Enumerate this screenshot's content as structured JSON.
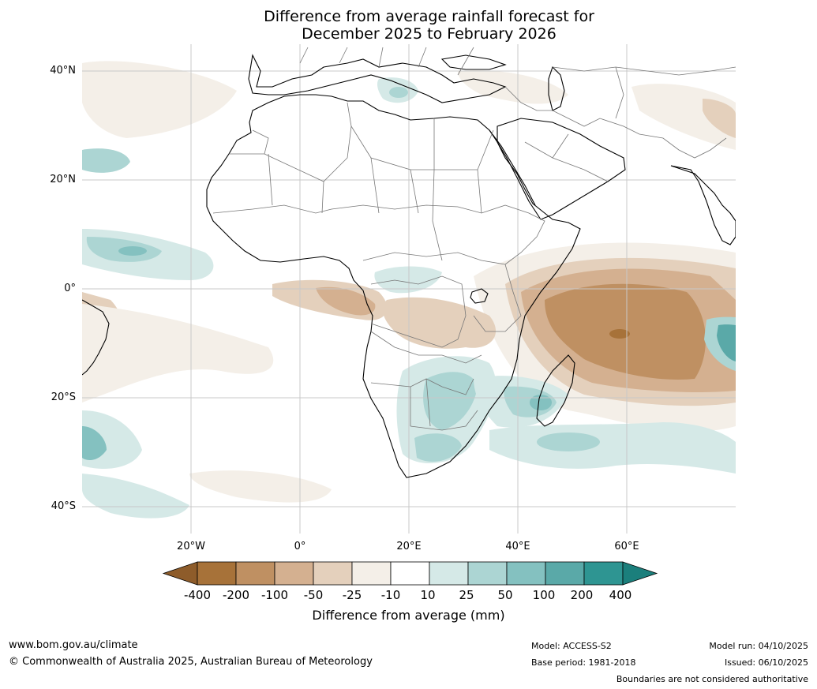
{
  "title": {
    "line1": "Difference from average rainfall forecast for",
    "line2": "December 2025 to February 2026"
  },
  "map": {
    "lat_labels": [
      "40°N",
      "20°N",
      "0°",
      "20°S",
      "40°S"
    ],
    "lon_labels": [
      "20°W",
      "0°",
      "20°E",
      "40°E",
      "60°E"
    ],
    "anomaly_areas": [
      {
        "name": "indian-ocean-dry-anomaly",
        "category": "-100"
      },
      {
        "name": "central-africa-dry-anomaly",
        "category": "-50"
      },
      {
        "name": "gulf-of-guinea-dry-anomaly",
        "category": "-100"
      },
      {
        "name": "southern-africa-wet-anomaly",
        "category": "50"
      },
      {
        "name": "mozambique-channel-wet-anomaly",
        "category": "100"
      },
      {
        "name": "east-indian-ocean-wet-anomaly",
        "category": "200"
      },
      {
        "name": "tropical-atlantic-wet-anomaly",
        "category": "100"
      },
      {
        "name": "south-atlantic-wet-anomaly",
        "category": "100"
      },
      {
        "name": "mediterranean-wet-anomaly",
        "category": "25"
      },
      {
        "name": "north-atlantic-dry-anomaly",
        "category": "-25"
      },
      {
        "name": "south-america-dry-anomaly",
        "category": "-50"
      }
    ]
  },
  "colorbar": {
    "labels": [
      "-400",
      "-200",
      "-100",
      "-50",
      "-25",
      "-10",
      "10",
      "25",
      "50",
      "100",
      "200",
      "400"
    ],
    "colors": [
      "#a77239",
      "#bf9062",
      "#d4b090",
      "#e4d0bc",
      "#f4efe8",
      "#ffffff",
      "#d5e9e7",
      "#acd5d3",
      "#84c1c0",
      "#5aa9a8",
      "#2e9592"
    ],
    "low_end_color": "#8e5c2a",
    "high_end_color": "#1b7f7c",
    "title": "Difference from average (mm)"
  },
  "footer": {
    "website": "www.bom.gov.au/climate",
    "copyright": "© Commonwealth of Australia 2025, Australian Bureau of Meteorology",
    "model": "Model: ACCESS-S2",
    "base_period": "Base period: 1981-2018",
    "model_run": "Model run: 04/10/2025",
    "issued": "Issued: 06/10/2025",
    "disclaimer": "Boundaries are not considered authoritative"
  }
}
